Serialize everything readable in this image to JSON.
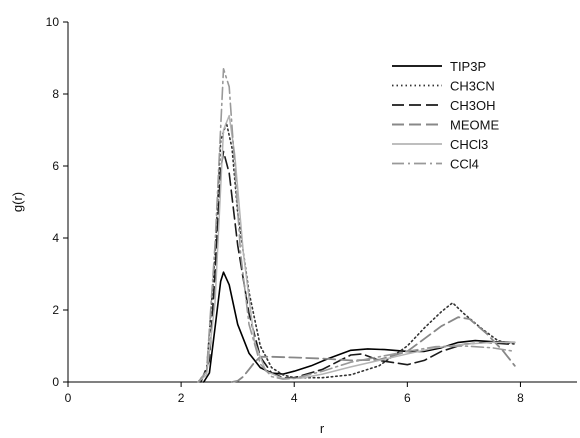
{
  "chart_data": {
    "type": "line",
    "title": "",
    "xlabel": "r",
    "ylabel": "g(r)",
    "xlim": [
      0,
      9
    ],
    "ylim": [
      0,
      10
    ],
    "xticks": [
      0,
      2,
      4,
      6,
      8
    ],
    "yticks": [
      0,
      2,
      4,
      6,
      8,
      10
    ],
    "grid": false,
    "legend_position": "top-right",
    "series": [
      {
        "name": "TIP3P",
        "color": "#000000",
        "dash": "solid",
        "width": 1.6,
        "x": [
          2.4,
          2.5,
          2.6,
          2.7,
          2.75,
          2.85,
          3.0,
          3.2,
          3.4,
          3.6,
          3.8,
          4.0,
          4.3,
          4.6,
          5.0,
          5.3,
          5.6,
          6.0,
          6.3,
          6.6,
          6.9,
          7.2,
          7.5,
          7.9
        ],
        "y": [
          0,
          0.25,
          1.5,
          2.8,
          3.05,
          2.7,
          1.6,
          0.8,
          0.4,
          0.25,
          0.22,
          0.3,
          0.45,
          0.65,
          0.88,
          0.92,
          0.9,
          0.85,
          0.85,
          0.95,
          1.1,
          1.15,
          1.12,
          1.1
        ]
      },
      {
        "name": "CH3CN",
        "color": "#333333",
        "dash": "dotted",
        "width": 1.6,
        "x": [
          2.3,
          2.45,
          2.6,
          2.7,
          2.8,
          2.9,
          3.0,
          3.2,
          3.4,
          3.6,
          3.8,
          4.0,
          4.5,
          5.0,
          5.5,
          6.0,
          6.3,
          6.6,
          6.8,
          7.0,
          7.3,
          7.6,
          7.9
        ],
        "y": [
          0,
          0.3,
          3.5,
          6.7,
          7.2,
          6.5,
          4.7,
          2.5,
          1.0,
          0.4,
          0.2,
          0.12,
          0.12,
          0.2,
          0.45,
          1.0,
          1.5,
          1.95,
          2.2,
          1.9,
          1.5,
          1.15,
          1.05
        ]
      },
      {
        "name": "CH3OH",
        "color": "#1a1a1a",
        "dash": "longdash",
        "width": 1.6,
        "x": [
          2.35,
          2.5,
          2.6,
          2.7,
          2.75,
          2.85,
          3.0,
          3.2,
          3.4,
          3.6,
          3.8,
          4.0,
          4.5,
          5.0,
          5.2,
          5.5,
          6.0,
          6.3,
          6.6,
          7.0,
          7.4,
          7.8
        ],
        "y": [
          0,
          0.6,
          3.0,
          5.9,
          6.4,
          5.8,
          3.8,
          1.9,
          0.7,
          0.25,
          0.12,
          0.12,
          0.35,
          0.75,
          0.78,
          0.6,
          0.48,
          0.6,
          0.85,
          1.05,
          1.1,
          1.05
        ]
      },
      {
        "name": "MEOME",
        "color": "#888888",
        "dash": "longdash",
        "width": 1.8,
        "x": [
          2.9,
          3.0,
          3.1,
          3.2,
          3.3,
          3.4,
          3.6,
          4.0,
          4.5,
          5.0,
          5.5,
          6.0,
          6.3,
          6.6,
          6.9,
          7.1,
          7.4,
          7.7,
          7.9
        ],
        "y": [
          0,
          0.03,
          0.15,
          0.35,
          0.55,
          0.7,
          0.7,
          0.68,
          0.65,
          0.6,
          0.62,
          0.85,
          1.2,
          1.55,
          1.8,
          1.75,
          1.35,
          0.85,
          0.45
        ]
      },
      {
        "name": "CHCl3",
        "color": "#b4b4b4",
        "dash": "solid",
        "width": 1.5,
        "x": [
          2.3,
          2.45,
          2.6,
          2.75,
          2.85,
          2.95,
          3.1,
          3.3,
          3.5,
          3.8,
          4.1,
          4.5,
          5.0,
          5.5,
          6.0,
          6.5,
          7.0,
          7.5,
          7.9
        ],
        "y": [
          0,
          0.2,
          2.2,
          7.0,
          7.4,
          6.3,
          3.6,
          1.1,
          0.3,
          0.1,
          0.1,
          0.22,
          0.42,
          0.6,
          0.78,
          0.95,
          1.05,
          1.1,
          1.1
        ]
      },
      {
        "name": "CCl4",
        "color": "#999999",
        "dash": "dashdot",
        "width": 1.6,
        "x": [
          2.3,
          2.45,
          2.6,
          2.75,
          2.85,
          2.95,
          3.05,
          3.2,
          3.4,
          3.6,
          3.8,
          4.0,
          4.5,
          5.0,
          5.5,
          6.0,
          6.5,
          7.0,
          7.5,
          7.9
        ],
        "y": [
          0,
          0.3,
          3.8,
          8.7,
          8.2,
          6.0,
          3.6,
          1.6,
          0.5,
          0.15,
          0.08,
          0.1,
          0.3,
          0.55,
          0.7,
          0.85,
          0.98,
          1.0,
          0.95,
          0.85
        ]
      }
    ]
  }
}
